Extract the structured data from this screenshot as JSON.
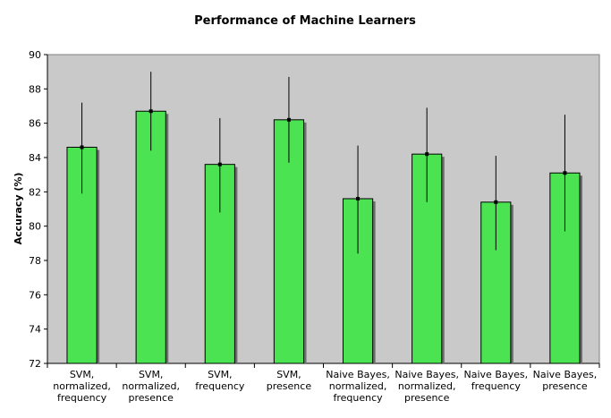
{
  "chart_data": {
    "type": "bar",
    "title": "Performance of Machine Learners",
    "ylabel": "Accuracy (%)",
    "xlabel": "",
    "ylim": [
      72,
      90
    ],
    "yticks": [
      72,
      74,
      76,
      78,
      80,
      82,
      84,
      86,
      88,
      90
    ],
    "grid": false,
    "legend": "none",
    "categories": [
      [
        "SVM,",
        "normalized,",
        "frequency"
      ],
      [
        "SVM,",
        "normalized,",
        "presence"
      ],
      [
        "SVM,",
        "frequency"
      ],
      [
        "SVM,",
        "presence"
      ],
      [
        "Naive Bayes,",
        "normalized,",
        "frequency"
      ],
      [
        "Naive Bayes,",
        "normalized,",
        "presence"
      ],
      [
        "Naive Bayes,",
        "frequency"
      ],
      [
        "Naive Bayes,",
        "presence"
      ]
    ],
    "values": [
      84.6,
      86.7,
      83.6,
      86.2,
      81.6,
      84.2,
      81.4,
      83.1
    ],
    "error_low": [
      81.9,
      84.4,
      80.8,
      83.7,
      78.4,
      81.4,
      78.6,
      79.7
    ],
    "error_high": [
      87.2,
      89.0,
      86.3,
      88.7,
      84.7,
      86.9,
      84.1,
      86.5
    ],
    "colors": {
      "bar_fill": "#4ce353",
      "bar_stroke": "#000000",
      "plot_bg": "#c9c9c9",
      "bar_shadow": "#6e6e6e"
    }
  }
}
